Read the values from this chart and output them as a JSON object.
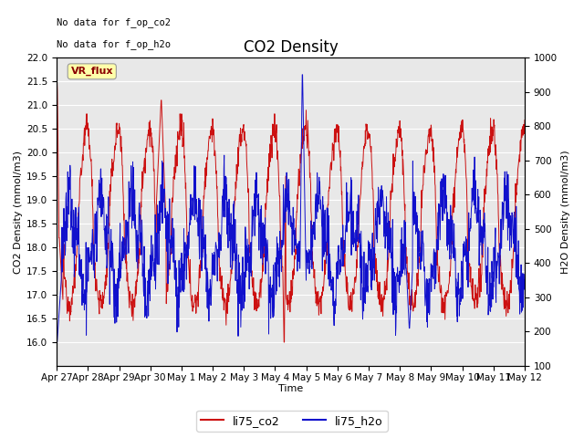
{
  "title": "CO2 Density",
  "xlabel": "Time",
  "ylabel_left": "CO2 Density (mmol/m3)",
  "ylabel_right": "H2O Density (mmol/m3)",
  "top_left_text_line1": "No data for f_op_co2",
  "top_left_text_line2": "No data for f_op_h2o",
  "vr_flux_label": "VR_flux",
  "ylim_left": [
    15.5,
    22.0
  ],
  "ylim_right": [
    100,
    1000
  ],
  "yticks_left": [
    16.0,
    16.5,
    17.0,
    17.5,
    18.0,
    18.5,
    19.0,
    19.5,
    20.0,
    20.5,
    21.0,
    21.5,
    22.0
  ],
  "yticks_right": [
    100,
    200,
    300,
    400,
    500,
    600,
    700,
    800,
    900,
    1000
  ],
  "xtick_labels": [
    "Apr 27",
    "Apr 28",
    "Apr 29",
    "Apr 30",
    "May 1",
    "May 2",
    "May 3",
    "May 4",
    "May 5",
    "May 6",
    "May 7",
    "May 8",
    "May 9",
    "May 10",
    "May 11",
    "May 12"
  ],
  "color_co2": "#cc1111",
  "color_h2o": "#1111cc",
  "plot_bg_color": "#e8e8e8",
  "grid_color": "#ffffff",
  "legend_labels": [
    "li75_co2",
    "li75_h2o"
  ],
  "legend_colors": [
    "#cc1111",
    "#1111cc"
  ],
  "title_fontsize": 12,
  "label_fontsize": 8,
  "tick_fontsize": 7.5,
  "legend_fontsize": 9
}
